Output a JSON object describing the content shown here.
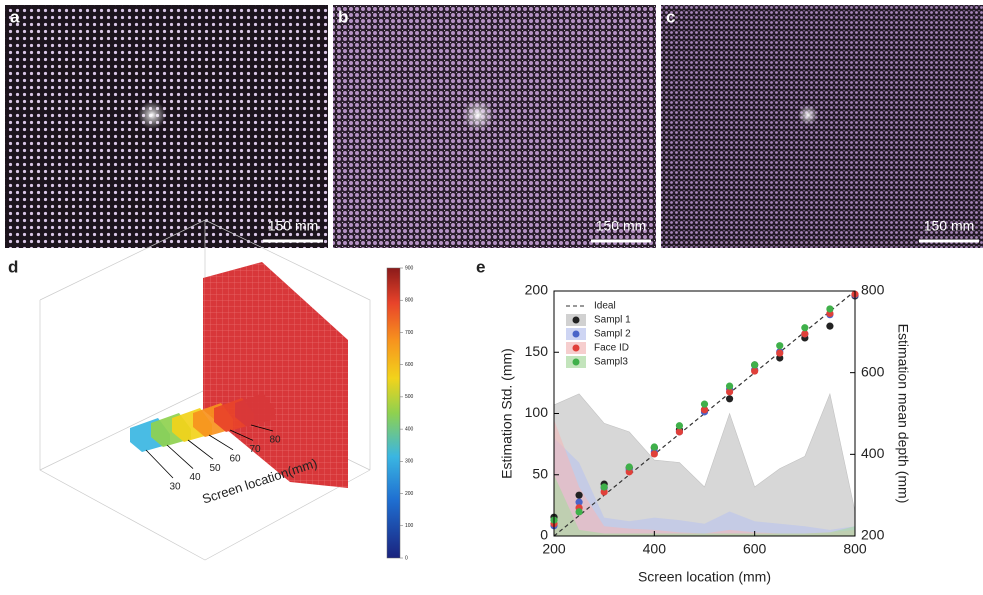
{
  "images": [
    {
      "label": "a",
      "scale_bar": "150 mm"
    },
    {
      "label": "b",
      "scale_bar": "150 mm"
    },
    {
      "label": "c",
      "scale_bar": "150 mm"
    }
  ],
  "chart_data": [
    {
      "type": "slices3d",
      "label": "d",
      "axis_label": "Screen location(mm)",
      "categories": [
        30,
        40,
        50,
        60,
        70,
        80
      ],
      "colors": [
        "#3ab6e2",
        "#8fd14f",
        "#f2d31b",
        "#f7931e",
        "#e8432a",
        "#d8373a"
      ],
      "wall_color": "#d8373a",
      "colorbar": {
        "ylim": [
          0,
          900
        ],
        "yticks": [
          0,
          100,
          200,
          300,
          400,
          500,
          600,
          700,
          800,
          900
        ]
      }
    },
    {
      "type": "line",
      "label": "e",
      "x_label": "Screen location (mm)",
      "y_label": "Estimation Std. (mm)",
      "y2_label": "Estimation mean depth (mm)",
      "x": [
        200,
        250,
        300,
        350,
        400,
        450,
        500,
        550,
        600,
        650,
        700,
        750,
        800
      ],
      "xlim": [
        200,
        800
      ],
      "xticks": [
        200,
        400,
        600,
        800
      ],
      "ylim": [
        0,
        200
      ],
      "yticks": [
        0,
        50,
        100,
        150,
        200
      ],
      "y2lim": [
        200,
        800
      ],
      "y2ticks": [
        200,
        400,
        600,
        800
      ],
      "ideal": {
        "name": "Ideal",
        "x": [
          200,
          800
        ],
        "values": [
          200,
          800
        ],
        "axis": "y2",
        "color": "#333333"
      },
      "series": [
        {
          "name": "Sampl 1",
          "color": "#222222",
          "shade": "#bdbdbd",
          "axis": "y2",
          "values": [
            246,
            300,
            327,
            367,
            416,
            460,
            509,
            536,
            619,
            636,
            685,
            714,
            788
          ],
          "std": [
            107,
            116,
            92,
            85,
            62,
            60,
            40,
            100,
            40,
            55,
            65,
            116,
            20
          ]
        },
        {
          "name": "Sampl 2",
          "color": "#4a64c8",
          "shade": "#b9c3ee",
          "axis": "y2",
          "values": [
            225,
            283,
            318,
            362,
            406,
            455,
            504,
            560,
            607,
            651,
            695,
            742,
            790
          ],
          "std": [
            80,
            60,
            15,
            12,
            15,
            13,
            10,
            20,
            12,
            10,
            8,
            5,
            8
          ]
        },
        {
          "name": "Face ID",
          "color": "#e0403a",
          "shade": "#f2b9b9",
          "axis": "y2",
          "values": [
            230,
            269,
            308,
            357,
            401,
            455,
            509,
            553,
            604,
            648,
            695,
            745,
            792
          ],
          "std": [
            95,
            40,
            8,
            6,
            5,
            3,
            2,
            5,
            3,
            2,
            2,
            3,
            5
          ]
        },
        {
          "name": "Sampl3",
          "color": "#3fb04a",
          "shade": "#a9d9a0",
          "axis": "y2",
          "values": [
            239,
            259,
            320,
            369,
            418,
            470,
            523,
            567,
            619,
            666,
            710,
            756,
            null
          ],
          "std": [
            50,
            5,
            2,
            2,
            2,
            2,
            2,
            2,
            2,
            2,
            2,
            3,
            8
          ]
        }
      ]
    }
  ]
}
